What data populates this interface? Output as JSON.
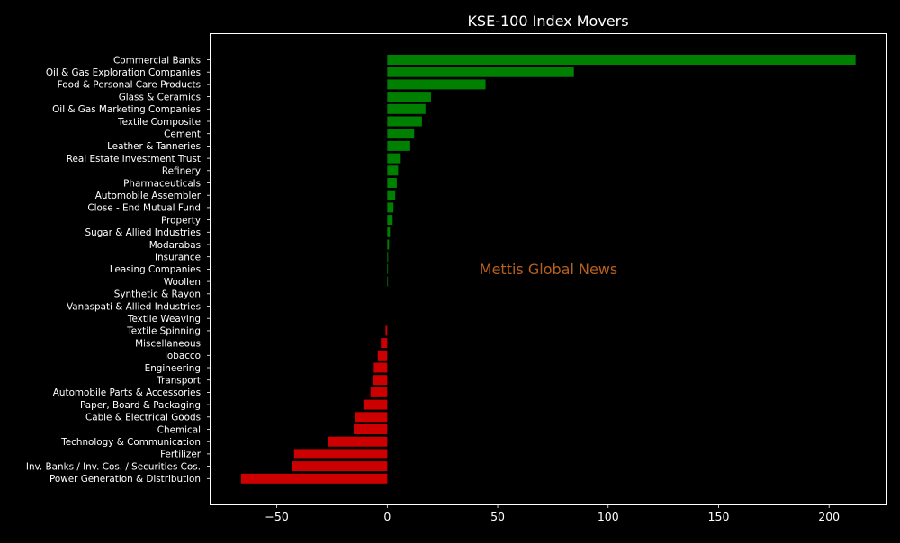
{
  "chart_data": {
    "type": "bar",
    "orientation": "horizontal",
    "title": "KSE-100 Index Movers",
    "xlabel": "",
    "ylabel": "",
    "xlim": [
      -80,
      226
    ],
    "xticks": [
      -50,
      0,
      50,
      100,
      150,
      200
    ],
    "xtick_labels": [
      "−50",
      "0",
      "50",
      "100",
      "150",
      "200"
    ],
    "grid": false,
    "legend": false,
    "annotation": {
      "text": "Mettis Global News",
      "x": 73,
      "y": "Leasing Companies"
    },
    "categories": [
      "Commercial Banks",
      "Oil & Gas Exploration Companies",
      "Food & Personal Care Products",
      "Glass & Ceramics",
      "Oil & Gas Marketing Companies",
      "Textile Composite",
      "Cement",
      "Leather & Tanneries",
      "Real Estate Investment Trust",
      "Refinery",
      "Pharmaceuticals",
      "Automobile Assembler",
      "Close - End Mutual Fund",
      "Property",
      "Sugar & Allied Industries",
      "Modarabas",
      "Insurance",
      "Leasing Companies",
      "Woollen",
      "Synthetic & Rayon",
      "Vanaspati & Allied Industries",
      "Textile Weaving",
      "Textile Spinning",
      "Miscellaneous",
      "Tobacco",
      "Engineering",
      "Transport",
      "Automobile Parts & Accessories",
      "Paper, Board & Packaging",
      "Cable & Electrical Goods",
      "Chemical",
      "Technology & Communication",
      "Fertilizer",
      "Inv. Banks / Inv. Cos. / Securities Cos.",
      "Power Generation & Distribution"
    ],
    "values": [
      212,
      84.5,
      44.5,
      19.8,
      17.3,
      15.7,
      12.2,
      10.4,
      6.1,
      4.9,
      4.3,
      3.6,
      2.8,
      2.4,
      1.2,
      0.8,
      0.4,
      0.2,
      0.1,
      0.0,
      0.0,
      0.0,
      -0.8,
      -2.9,
      -4.3,
      -6.1,
      -6.7,
      -7.6,
      -10.8,
      -14.6,
      -15.2,
      -26.7,
      -42.2,
      -43.0,
      -66.2
    ],
    "colors": {
      "positive": "#008000",
      "negative": "#cc0000",
      "annotation": "#b8601e",
      "foreground": "#ffffff",
      "background": "#000000"
    }
  }
}
